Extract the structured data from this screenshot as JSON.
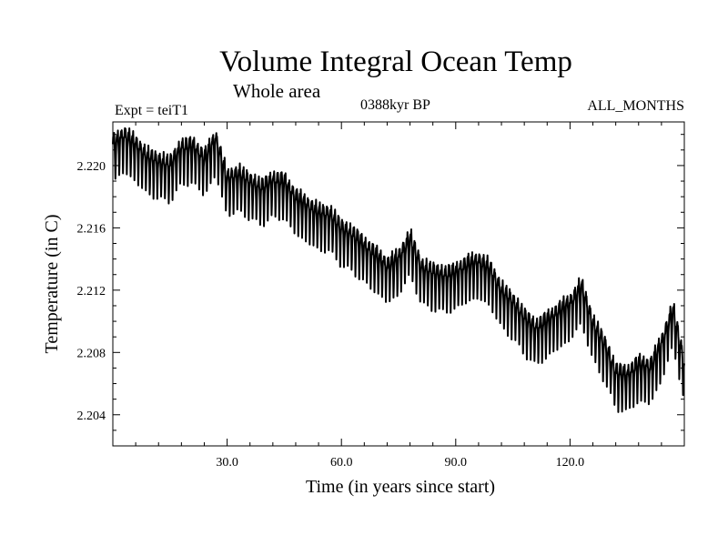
{
  "header": {
    "title": "Volume Integral Ocean Temp",
    "subtitle": "Whole area",
    "experiment": "Expt = teiT1",
    "epoch": "0388kyr BP",
    "season": "ALL_MONTHS"
  },
  "chart_data": {
    "type": "line",
    "title": "Volume Integral Ocean Temp",
    "subtitle": "Whole area",
    "xlabel": "Time (in years since start)",
    "ylabel": "Temperature (in C)",
    "xlim": [
      0,
      150
    ],
    "ylim": [
      2.202,
      2.2228
    ],
    "xticks": [
      30,
      60,
      90,
      120
    ],
    "xtick_labels": [
      "30.0",
      "60.0",
      "90.0",
      "120.0"
    ],
    "yticks": [
      2.204,
      2.208,
      2.212,
      2.216,
      2.22
    ],
    "ytick_labels": [
      "2.204",
      "2.208",
      "2.212",
      "2.216",
      "2.220"
    ],
    "series": [
      {
        "name": "teiT1 ALL_MONTHS",
        "color": "#000000",
        "annual_cycle_amplitude": 0.0014,
        "trend_x": [
          0,
          3,
          6,
          9,
          12,
          15,
          18,
          21,
          24,
          27,
          30,
          33,
          36,
          39,
          42,
          45,
          48,
          51,
          54,
          57,
          60,
          63,
          66,
          69,
          72,
          75,
          78,
          81,
          84,
          87,
          90,
          93,
          96,
          99,
          102,
          105,
          108,
          111,
          114,
          117,
          120,
          123,
          126,
          129,
          132,
          135,
          138,
          141,
          144,
          147,
          150
        ],
        "trend_y": [
          2.2206,
          2.2212,
          2.2206,
          2.2198,
          2.2195,
          2.2193,
          2.2204,
          2.2205,
          2.2197,
          2.221,
          2.2184,
          2.2187,
          2.2182,
          2.2178,
          2.2183,
          2.2182,
          2.2172,
          2.2167,
          2.2162,
          2.2161,
          2.2152,
          2.2148,
          2.2141,
          2.2135,
          2.2128,
          2.2133,
          2.2146,
          2.2127,
          2.2124,
          2.2122,
          2.2124,
          2.2129,
          2.2131,
          2.2126,
          2.2112,
          2.2105,
          2.2095,
          2.2088,
          2.2093,
          2.2099,
          2.2104,
          2.2115,
          2.2091,
          2.2078,
          2.206,
          2.2058,
          2.2065,
          2.2063,
          2.2078,
          2.21,
          2.2065
        ]
      }
    ]
  }
}
